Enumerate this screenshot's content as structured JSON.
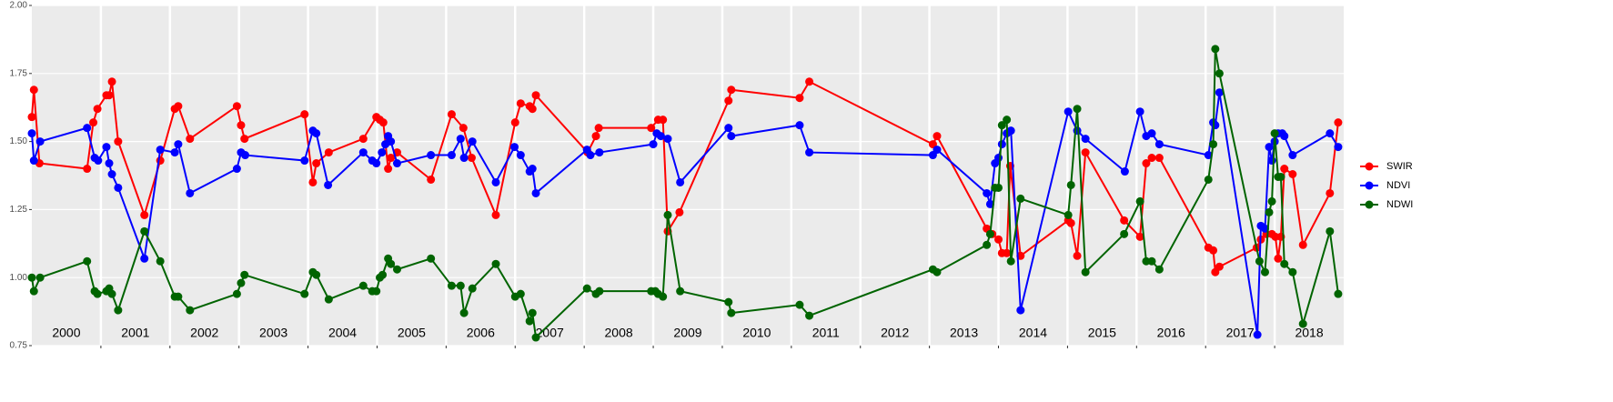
{
  "chart_data": {
    "type": "line",
    "ylim": [
      0.75,
      2.0
    ],
    "yticks": [
      {
        "value": 0.75,
        "label": "0.75"
      },
      {
        "value": 1.0,
        "label": "1.00"
      },
      {
        "value": 1.25,
        "label": "1.25"
      },
      {
        "value": 1.5,
        "label": "1.50"
      },
      {
        "value": 1.75,
        "label": "1.75"
      },
      {
        "value": 2.0,
        "label": "2.00"
      }
    ],
    "xlim": [
      2000,
      2019
    ],
    "years": [
      2000,
      2001,
      2002,
      2003,
      2004,
      2005,
      2006,
      2007,
      2008,
      2009,
      2010,
      2011,
      2012,
      2013,
      2014,
      2015,
      2016,
      2017,
      2018
    ],
    "grid": true,
    "legend": "right",
    "series": [
      {
        "name": "SWIR",
        "color": "#ff0000",
        "x": [
          2000,
          2000.03,
          2000.11,
          2000.8,
          2000.89,
          2000.95,
          2001.08,
          2001.12,
          2001.16,
          2001.25,
          2001.63,
          2001.86,
          2002.07,
          2002.12,
          2002.29,
          2002.97,
          2003.03,
          2003.08,
          2003.95,
          2004.07,
          2004.12,
          2004.3,
          2004.8,
          2004.99,
          2005.04,
          2005.09,
          2005.16,
          2005.2,
          2005.29,
          2005.78,
          2006.08,
          2006.25,
          2006.37,
          2006.72,
          2007.0,
          2007.08,
          2007.21,
          2007.25,
          2007.3,
          2008.05,
          2008.17,
          2008.21,
          2008.97,
          2009.07,
          2009.14,
          2009.21,
          2009.38,
          2010.09,
          2010.13,
          2011.12,
          2011.26,
          2013.05,
          2013.11,
          2013.83,
          2013.91,
          2014.0,
          2014.05,
          2014.12,
          2014.17,
          2014.32,
          2015.01,
          2015.05,
          2015.14,
          2015.26,
          2015.82,
          2016.05,
          2016.14,
          2016.22,
          2016.33,
          2017.04,
          2017.11,
          2017.14,
          2017.2,
          2017.74,
          2017.8,
          2017.88,
          2017.96,
          2018.01,
          2018.05,
          2018.09,
          2018.14,
          2018.26,
          2018.41,
          2018.8,
          2018.92
        ],
        "values": [
          1.59,
          1.69,
          1.42,
          1.4,
          1.57,
          1.62,
          1.67,
          1.67,
          1.72,
          1.5,
          1.23,
          1.43,
          1.62,
          1.63,
          1.51,
          1.63,
          1.56,
          1.51,
          1.6,
          1.35,
          1.42,
          1.46,
          1.51,
          1.59,
          1.58,
          1.57,
          1.4,
          1.44,
          1.46,
          1.36,
          1.6,
          1.55,
          1.44,
          1.23,
          1.57,
          1.64,
          1.63,
          1.62,
          1.67,
          1.46,
          1.52,
          1.55,
          1.55,
          1.58,
          1.58,
          1.17,
          1.24,
          1.65,
          1.69,
          1.66,
          1.72,
          1.49,
          1.52,
          1.18,
          1.16,
          1.14,
          1.09,
          1.09,
          1.41,
          1.08,
          1.21,
          1.2,
          1.08,
          1.46,
          1.21,
          1.15,
          1.42,
          1.44,
          1.44,
          1.11,
          1.1,
          1.02,
          1.04,
          1.11,
          1.14,
          1.16,
          1.16,
          1.15,
          1.07,
          1.15,
          1.4,
          1.38,
          1.12,
          1.31,
          1.57
        ]
      },
      {
        "name": "NDVI",
        "color": "#0000ff",
        "x": [
          2000,
          2000.03,
          2000.12,
          2000.8,
          2000.91,
          2000.96,
          2001.08,
          2001.12,
          2001.16,
          2001.25,
          2001.63,
          2001.86,
          2002.07,
          2002.12,
          2002.29,
          2002.97,
          2003.03,
          2003.09,
          2003.95,
          2004.07,
          2004.12,
          2004.29,
          2004.8,
          2004.93,
          2004.99,
          2005.07,
          2005.12,
          2005.16,
          2005.2,
          2005.29,
          2005.78,
          2006.08,
          2006.21,
          2006.26,
          2006.38,
          2006.72,
          2006.99,
          2007.08,
          2007.21,
          2007.25,
          2007.3,
          2008.04,
          2008.09,
          2008.22,
          2009.0,
          2009.05,
          2009.11,
          2009.21,
          2009.39,
          2010.09,
          2010.13,
          2011.12,
          2011.26,
          2013.05,
          2013.11,
          2013.83,
          2013.88,
          2013.95,
          2014.0,
          2014.05,
          2014.12,
          2014.18,
          2014.32,
          2015.01,
          2015.14,
          2015.26,
          2015.83,
          2016.05,
          2016.14,
          2016.22,
          2016.33,
          2017.04,
          2017.11,
          2017.14,
          2017.2,
          2017.75,
          2017.8,
          2017.86,
          2017.92,
          2017.96,
          2018.0,
          2018.05,
          2018.11,
          2018.14,
          2018.26,
          2018.8,
          2018.92
        ],
        "values": [
          1.53,
          1.43,
          1.5,
          1.55,
          1.44,
          1.43,
          1.48,
          1.42,
          1.38,
          1.33,
          1.07,
          1.47,
          1.46,
          1.49,
          1.31,
          1.4,
          1.46,
          1.45,
          1.43,
          1.54,
          1.53,
          1.34,
          1.46,
          1.43,
          1.42,
          1.46,
          1.49,
          1.52,
          1.5,
          1.42,
          1.45,
          1.45,
          1.51,
          1.44,
          1.5,
          1.35,
          1.48,
          1.45,
          1.39,
          1.4,
          1.31,
          1.47,
          1.45,
          1.46,
          1.49,
          1.53,
          1.52,
          1.51,
          1.35,
          1.55,
          1.52,
          1.56,
          1.46,
          1.45,
          1.47,
          1.31,
          1.27,
          1.42,
          1.44,
          1.49,
          1.53,
          1.54,
          0.88,
          1.61,
          1.54,
          1.51,
          1.39,
          1.61,
          1.52,
          1.53,
          1.49,
          1.45,
          1.57,
          1.56,
          1.68,
          0.79,
          1.19,
          1.18,
          1.48,
          1.43,
          1.5,
          1.53,
          1.53,
          1.52,
          1.45,
          1.53,
          1.48
        ]
      },
      {
        "name": "NDWI",
        "color": "#006400",
        "x": [
          2000,
          2000.03,
          2000.12,
          2000.8,
          2000.91,
          2000.95,
          2001.08,
          2001.12,
          2001.16,
          2001.25,
          2001.63,
          2001.86,
          2002.07,
          2002.12,
          2002.29,
          2002.97,
          2003.03,
          2003.08,
          2003.95,
          2004.07,
          2004.12,
          2004.3,
          2004.8,
          2004.93,
          2004.99,
          2005.04,
          2005.08,
          2005.16,
          2005.2,
          2005.29,
          2005.78,
          2006.08,
          2006.21,
          2006.26,
          2006.38,
          2006.72,
          2007.0,
          2007.08,
          2007.21,
          2007.25,
          2007.3,
          2008.04,
          2008.17,
          2008.22,
          2008.97,
          2009.03,
          2009.07,
          2009.14,
          2009.21,
          2009.39,
          2010.09,
          2010.13,
          2011.12,
          2011.26,
          2013.05,
          2013.11,
          2013.83,
          2013.88,
          2013.95,
          2014.0,
          2014.05,
          2014.12,
          2014.18,
          2014.32,
          2015.01,
          2015.05,
          2015.14,
          2015.26,
          2015.82,
          2016.05,
          2016.14,
          2016.22,
          2016.33,
          2017.04,
          2017.11,
          2017.14,
          2017.2,
          2017.78,
          2017.86,
          2017.92,
          2017.96,
          2018.0,
          2018.05,
          2018.09,
          2018.14,
          2018.26,
          2018.41,
          2018.8,
          2018.92
        ],
        "values": [
          1.0,
          0.95,
          1.0,
          1.06,
          0.95,
          0.94,
          0.95,
          0.96,
          0.94,
          0.88,
          1.17,
          1.06,
          0.93,
          0.93,
          0.88,
          0.94,
          0.98,
          1.01,
          0.94,
          1.02,
          1.01,
          0.92,
          0.97,
          0.95,
          0.95,
          1.0,
          1.01,
          1.07,
          1.05,
          1.03,
          1.07,
          0.97,
          0.97,
          0.87,
          0.96,
          1.05,
          0.93,
          0.94,
          0.84,
          0.87,
          0.78,
          0.96,
          0.94,
          0.95,
          0.95,
          0.95,
          0.94,
          0.93,
          1.23,
          0.95,
          0.91,
          0.87,
          0.9,
          0.86,
          1.03,
          1.02,
          1.12,
          1.16,
          1.33,
          1.33,
          1.56,
          1.58,
          1.06,
          1.29,
          1.23,
          1.34,
          1.62,
          1.02,
          1.16,
          1.28,
          1.06,
          1.06,
          1.03,
          1.36,
          1.49,
          1.84,
          1.75,
          1.06,
          1.02,
          1.24,
          1.28,
          1.53,
          1.37,
          1.37,
          1.05,
          1.02,
          0.83,
          1.17,
          0.94
        ]
      }
    ]
  }
}
